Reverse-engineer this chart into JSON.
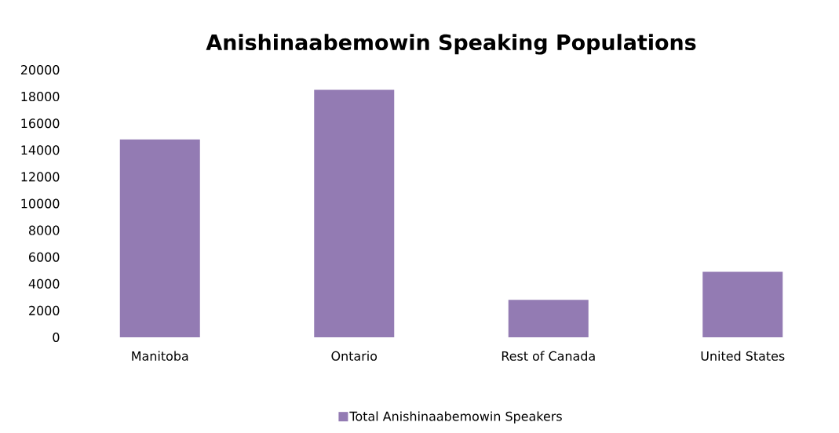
{
  "chart_data": {
    "type": "bar",
    "title": "Anishinaabemowin Speaking Populations",
    "categories": [
      "Manitoba",
      "Ontario",
      "Rest of Canada",
      "United States"
    ],
    "series": [
      {
        "name": "Total Anishinaabemowin Speakers",
        "color": "#937bb3",
        "values": [
          14800,
          18500,
          2800,
          4900
        ]
      }
    ],
    "ylim": [
      0,
      20000
    ],
    "yticks": [
      0,
      2000,
      4000,
      6000,
      8000,
      10000,
      12000,
      14000,
      16000,
      18000,
      20000
    ],
    "grid": false,
    "legend": "bottom"
  }
}
